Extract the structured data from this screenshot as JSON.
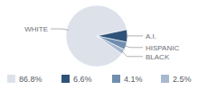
{
  "chart_data": {
    "type": "pie",
    "categories": [
      "WHITE",
      "A.I.",
      "HISPANIC",
      "BLACK"
    ],
    "values": [
      86.8,
      6.6,
      4.1,
      2.5
    ],
    "value_labels": [
      "86.8%",
      "6.6%",
      "4.1%",
      "2.5%"
    ],
    "colors": [
      "#dce1ea",
      "#2f5279",
      "#6f8daf",
      "#a7b9cd"
    ],
    "data_labels": true
  }
}
